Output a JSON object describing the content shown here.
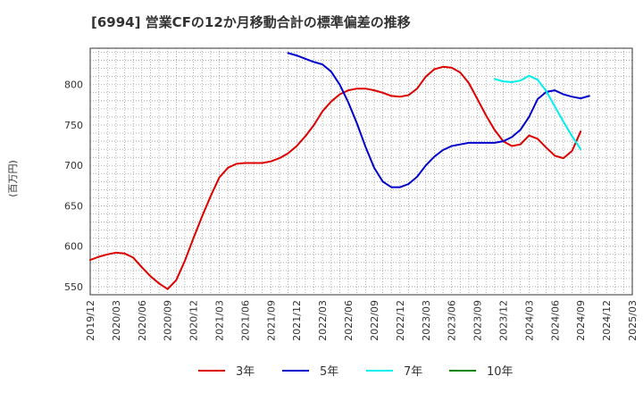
{
  "chart_data": {
    "type": "line",
    "title": "[6994]  営業CFの12か月移動合計の標準偏差の推移",
    "ylabel": "(百万円)",
    "xlabel": "",
    "ylim": [
      540,
      845
    ],
    "yticks": [
      550,
      600,
      650,
      700,
      750,
      800
    ],
    "x_ticks": [
      "2019/12",
      "2020/03",
      "2020/06",
      "2020/09",
      "2020/12",
      "2021/03",
      "2021/06",
      "2021/09",
      "2021/12",
      "2022/03",
      "2022/06",
      "2022/09",
      "2022/12",
      "2023/03",
      "2023/06",
      "2023/09",
      "2023/12",
      "2024/03",
      "2024/06",
      "2024/09",
      "2024/12",
      "2025/03"
    ],
    "x_start": "2019/12",
    "x_end": "2025/03",
    "grid": true,
    "legend_position": "bottom",
    "series": [
      {
        "name": "3年",
        "color": "#dd0000",
        "points": [
          [
            "2019/12",
            583
          ],
          [
            "2020/01",
            587
          ],
          [
            "2020/02",
            590
          ],
          [
            "2020/03",
            592
          ],
          [
            "2020/04",
            591
          ],
          [
            "2020/05",
            586
          ],
          [
            "2020/06",
            574
          ],
          [
            "2020/07",
            563
          ],
          [
            "2020/08",
            554
          ],
          [
            "2020/09",
            547
          ],
          [
            "2020/10",
            558
          ],
          [
            "2020/11",
            582
          ],
          [
            "2020/12",
            610
          ],
          [
            "2021/01",
            637
          ],
          [
            "2021/02",
            662
          ],
          [
            "2021/03",
            685
          ],
          [
            "2021/04",
            697
          ],
          [
            "2021/05",
            702
          ],
          [
            "2021/06",
            703
          ],
          [
            "2021/07",
            703
          ],
          [
            "2021/08",
            703
          ],
          [
            "2021/09",
            705
          ],
          [
            "2021/10",
            709
          ],
          [
            "2021/11",
            715
          ],
          [
            "2021/12",
            724
          ],
          [
            "2022/01",
            736
          ],
          [
            "2022/02",
            750
          ],
          [
            "2022/03",
            767
          ],
          [
            "2022/04",
            779
          ],
          [
            "2022/05",
            788
          ],
          [
            "2022/06",
            793
          ],
          [
            "2022/07",
            795
          ],
          [
            "2022/08",
            795
          ],
          [
            "2022/09",
            793
          ],
          [
            "2022/10",
            790
          ],
          [
            "2022/11",
            786
          ],
          [
            "2022/12",
            785
          ],
          [
            "2023/01",
            787
          ],
          [
            "2023/02",
            795
          ],
          [
            "2023/03",
            810
          ],
          [
            "2023/04",
            819
          ],
          [
            "2023/05",
            822
          ],
          [
            "2023/06",
            821
          ],
          [
            "2023/07",
            815
          ],
          [
            "2023/08",
            802
          ],
          [
            "2023/09",
            782
          ],
          [
            "2023/10",
            762
          ],
          [
            "2023/11",
            744
          ],
          [
            "2023/12",
            730
          ],
          [
            "2024/01",
            724
          ],
          [
            "2024/02",
            726
          ],
          [
            "2024/03",
            737
          ],
          [
            "2024/04",
            733
          ],
          [
            "2024/05",
            722
          ],
          [
            "2024/06",
            712
          ],
          [
            "2024/07",
            709
          ],
          [
            "2024/08",
            718
          ],
          [
            "2024/09",
            742
          ]
        ]
      },
      {
        "name": "5年",
        "color": "#0000cc",
        "points": [
          [
            "2021/11",
            839
          ],
          [
            "2021/12",
            836
          ],
          [
            "2022/01",
            832
          ],
          [
            "2022/02",
            828
          ],
          [
            "2022/03",
            825
          ],
          [
            "2022/04",
            816
          ],
          [
            "2022/05",
            800
          ],
          [
            "2022/06",
            778
          ],
          [
            "2022/07",
            752
          ],
          [
            "2022/08",
            723
          ],
          [
            "2022/09",
            697
          ],
          [
            "2022/10",
            680
          ],
          [
            "2022/11",
            673
          ],
          [
            "2022/12",
            673
          ],
          [
            "2023/01",
            677
          ],
          [
            "2023/02",
            686
          ],
          [
            "2023/03",
            700
          ],
          [
            "2023/04",
            711
          ],
          [
            "2023/05",
            719
          ],
          [
            "2023/06",
            724
          ],
          [
            "2023/07",
            726
          ],
          [
            "2023/08",
            728
          ],
          [
            "2023/09",
            728
          ],
          [
            "2023/10",
            728
          ],
          [
            "2023/11",
            728
          ],
          [
            "2023/12",
            730
          ],
          [
            "2024/01",
            735
          ],
          [
            "2024/02",
            744
          ],
          [
            "2024/03",
            760
          ],
          [
            "2024/04",
            782
          ],
          [
            "2024/05",
            791
          ],
          [
            "2024/06",
            793
          ],
          [
            "2024/07",
            788
          ],
          [
            "2024/08",
            785
          ],
          [
            "2024/09",
            783
          ],
          [
            "2024/10",
            786
          ]
        ]
      },
      {
        "name": "7年",
        "color": "#00eeee",
        "points": [
          [
            "2023/11",
            807
          ],
          [
            "2023/12",
            804
          ],
          [
            "2024/01",
            803
          ],
          [
            "2024/02",
            805
          ],
          [
            "2024/03",
            811
          ],
          [
            "2024/04",
            806
          ],
          [
            "2024/05",
            792
          ],
          [
            "2024/06",
            773
          ],
          [
            "2024/07",
            754
          ],
          [
            "2024/08",
            736
          ],
          [
            "2024/09",
            720
          ]
        ]
      },
      {
        "name": "10年",
        "color": "#008800",
        "points": []
      }
    ]
  }
}
